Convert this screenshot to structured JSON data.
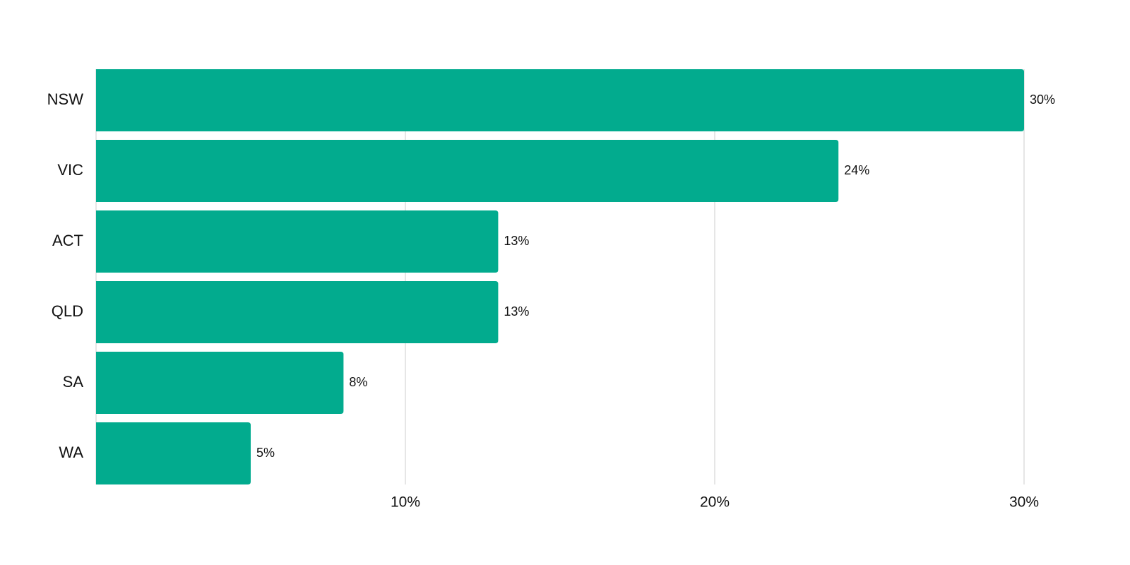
{
  "chart_data": {
    "type": "bar",
    "orientation": "horizontal",
    "categories": [
      "NSW",
      "VIC",
      "ACT",
      "QLD",
      "SA",
      "WA"
    ],
    "values": [
      30,
      24,
      13,
      13,
      8,
      5
    ],
    "value_labels": [
      "30%",
      "24%",
      "13%",
      "13%",
      "8%",
      "5%"
    ],
    "color": "#02ab8e",
    "xlim": [
      0,
      30
    ],
    "xticks": [
      {
        "value": 10,
        "label": "10%"
      },
      {
        "value": 20,
        "label": "20%"
      },
      {
        "value": 30,
        "label": "30%"
      }
    ],
    "grid": true
  }
}
